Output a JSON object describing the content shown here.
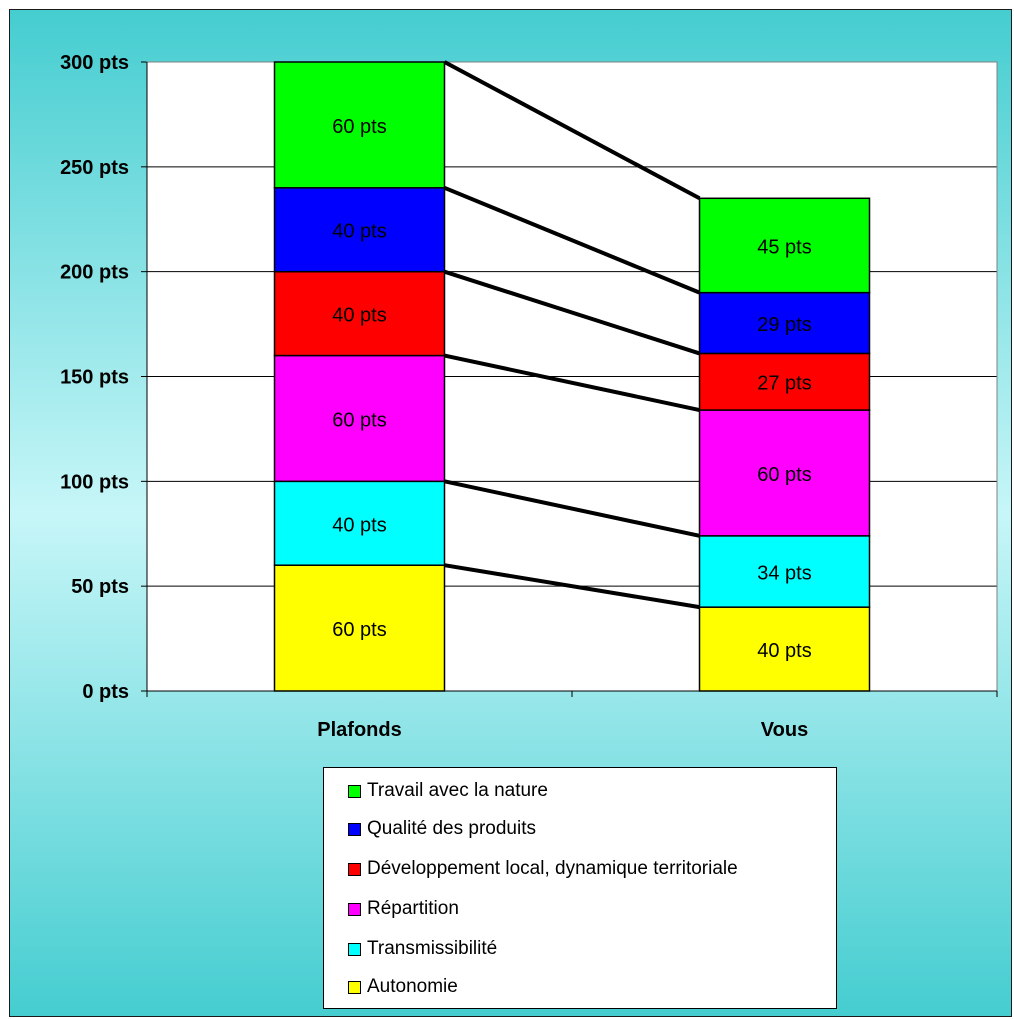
{
  "chart_data": {
    "type": "bar",
    "stacked": true,
    "categories": [
      "Plafonds",
      "Vous"
    ],
    "y_tick_labels": [
      "0 pts",
      "50 pts",
      "100 pts",
      "150 pts",
      "200 pts",
      "250 pts",
      "300 pts"
    ],
    "ylim": [
      0,
      300
    ],
    "grid": true,
    "legend_position": "bottom",
    "series": [
      {
        "name": "Autonomie",
        "color": "#ffff00",
        "values": [
          60,
          40
        ],
        "labels": [
          "60 pts",
          "40 pts"
        ]
      },
      {
        "name": "Transmissibilité",
        "color": "#00ffff",
        "values": [
          40,
          34
        ],
        "labels": [
          "40 pts",
          "34 pts"
        ]
      },
      {
        "name": "Répartition",
        "color": "#ff00ff",
        "values": [
          60,
          60
        ],
        "labels": [
          "60 pts",
          "60 pts"
        ]
      },
      {
        "name": "Développement local, dynamique territoriale",
        "color": "#ff0000",
        "values": [
          40,
          27
        ],
        "labels": [
          "40 pts",
          "27 pts"
        ]
      },
      {
        "name": "Qualité des produits",
        "color": "#0000ff",
        "values": [
          40,
          29
        ],
        "labels": [
          "40 pts",
          "29 pts"
        ]
      },
      {
        "name": "Travail avec la nature",
        "color": "#00ff00",
        "values": [
          60,
          45
        ],
        "labels": [
          "60 pts",
          "45 pts"
        ]
      }
    ]
  },
  "legend": {
    "items": [
      {
        "label": "Travail avec la nature",
        "color": "#00ff00"
      },
      {
        "label": "Qualité des produits",
        "color": "#0000ff"
      },
      {
        "label": "Développement local, dynamique territoriale",
        "color": "#ff0000"
      },
      {
        "label": "Répartition",
        "color": "#ff00ff"
      },
      {
        "label": "Transmissibilité",
        "color": "#00ffff"
      },
      {
        "label": "Autonomie",
        "color": "#ffff00"
      }
    ]
  }
}
